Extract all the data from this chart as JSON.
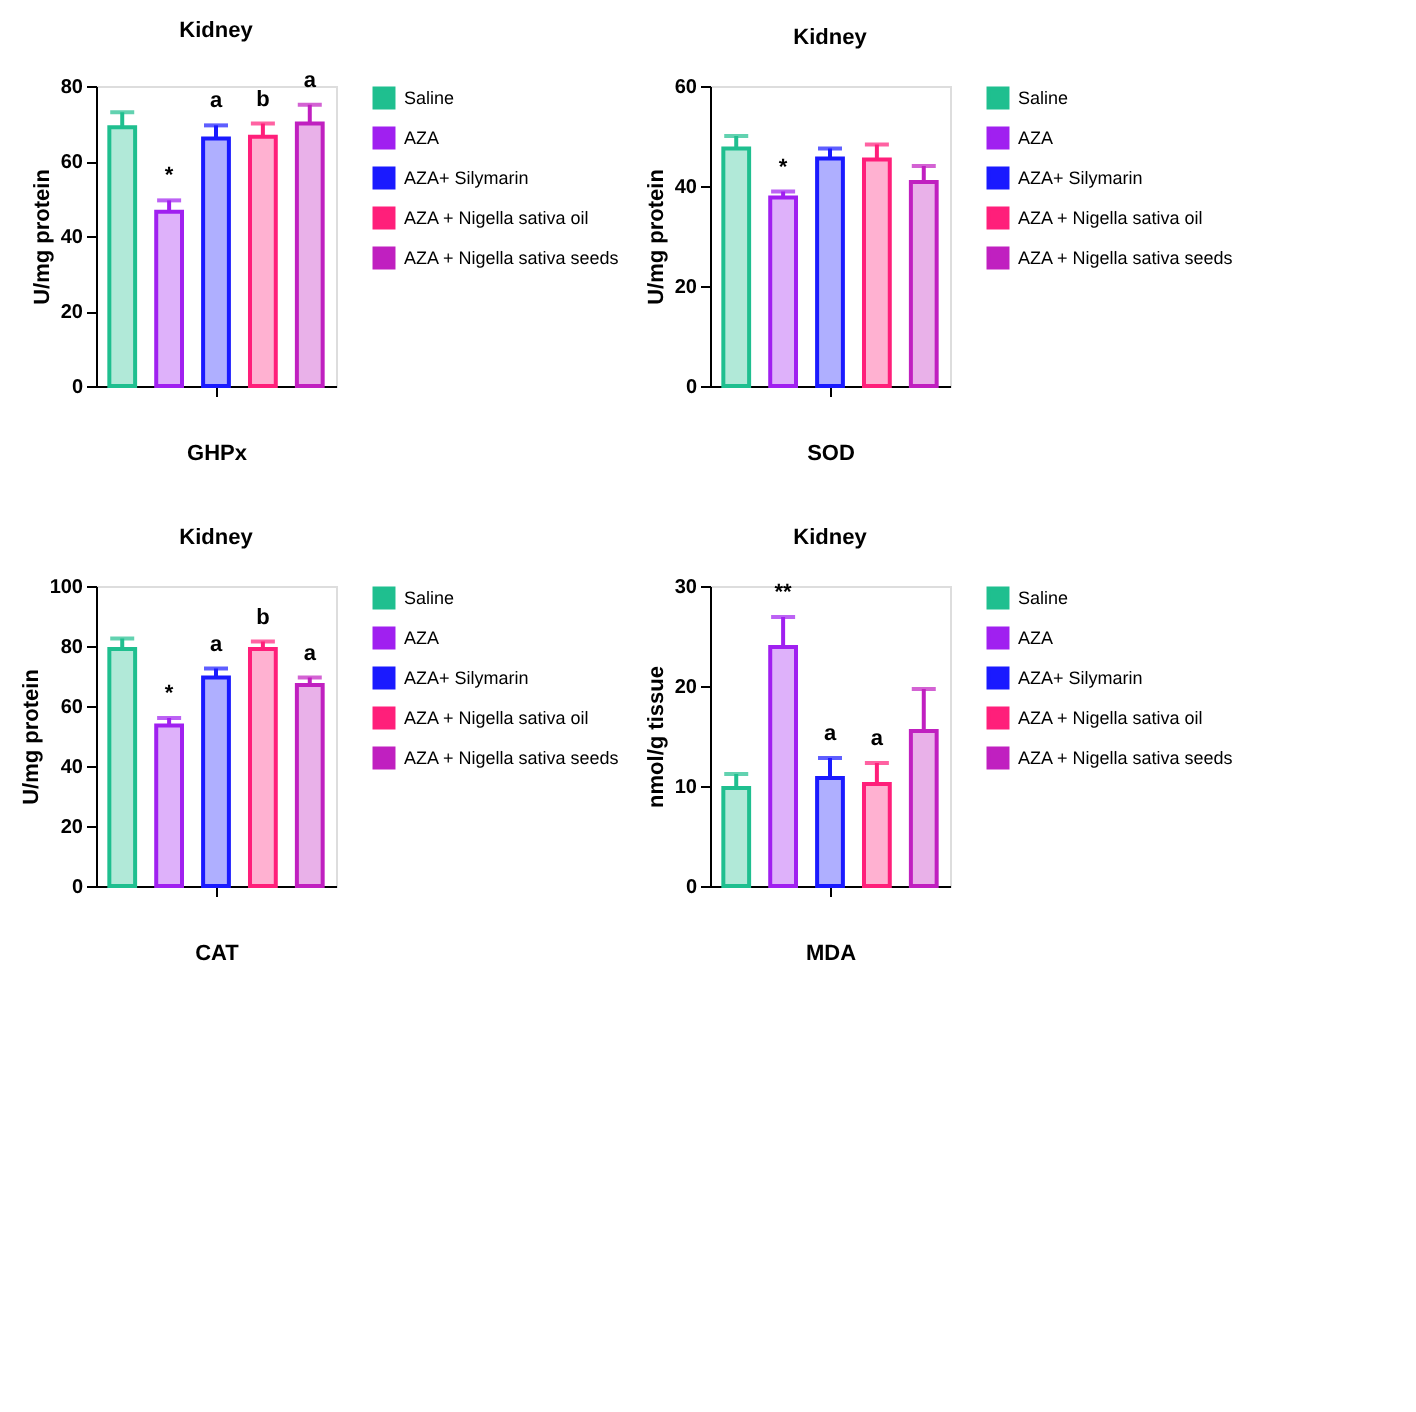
{
  "chart_data": [
    {
      "type": "bar",
      "title": "Kidney",
      "xlabel": "GHPx",
      "ylabel": "U/mg protein",
      "categories": [
        null
      ],
      "ylim": [
        0,
        80
      ],
      "yticks": [
        0,
        20,
        40,
        60,
        80
      ],
      "legend": "top right",
      "grid": false,
      "tick_labels": "y",
      "series": [
        {
          "name": "Saline",
          "color": "#1fbf8f",
          "values": [
            69
          ],
          "errors": [
            4
          ]
        },
        {
          "name": "AZA",
          "color": "#a020f0",
          "values": [
            46.5
          ],
          "errors": [
            3
          ],
          "value_labels": [
            "*"
          ]
        },
        {
          "name": "AZA+ Silymarin",
          "color": "#1a1aff",
          "values": [
            66
          ],
          "errors": [
            3.5
          ],
          "value_labels": [
            "a"
          ]
        },
        {
          "name": "AZA + Nigella sativa oil",
          "color": "#ff1f7a",
          "values": [
            66.5
          ],
          "errors": [
            3.5
          ],
          "value_labels": [
            "b"
          ]
        },
        {
          "name": "AZA + Nigella sativa seeds",
          "color": "#c020c0",
          "values": [
            70
          ],
          "errors": [
            5
          ],
          "value_labels": [
            "a"
          ]
        }
      ]
    },
    {
      "type": "bar",
      "title": "Kidney",
      "xlabel": "SOD",
      "ylabel": "U/mg protein",
      "categories": [
        null
      ],
      "ylim": [
        0,
        60
      ],
      "yticks": [
        0,
        20,
        40,
        60
      ],
      "legend": "top right",
      "grid": false,
      "tick_labels": "y",
      "series": [
        {
          "name": "Saline",
          "color": "#1fbf8f",
          "values": [
            47.5
          ],
          "errors": [
            2.5
          ]
        },
        {
          "name": "AZA",
          "color": "#a020f0",
          "values": [
            37.7
          ],
          "errors": [
            1.2
          ],
          "value_labels": [
            "*"
          ]
        },
        {
          "name": "AZA+ Silymarin",
          "color": "#1a1aff",
          "values": [
            45.5
          ],
          "errors": [
            2
          ]
        },
        {
          "name": "AZA + Nigella sativa oil",
          "color": "#ff1f7a",
          "values": [
            45.3
          ],
          "errors": [
            3
          ]
        },
        {
          "name": "AZA + Nigella sativa seeds",
          "color": "#c020c0",
          "values": [
            40.8
          ],
          "errors": [
            3.2
          ]
        }
      ]
    },
    {
      "type": "bar",
      "title": "Kidney",
      "xlabel": "CAT",
      "ylabel": "U/mg protein",
      "categories": [
        null
      ],
      "ylim": [
        0,
        100
      ],
      "yticks": [
        0,
        20,
        40,
        60,
        80,
        100
      ],
      "legend": "top right",
      "grid": false,
      "tick_labels": "y",
      "series": [
        {
          "name": "Saline",
          "color": "#1fbf8f",
          "values": [
            79
          ],
          "errors": [
            3.5
          ]
        },
        {
          "name": "AZA",
          "color": "#a020f0",
          "values": [
            53.5
          ],
          "errors": [
            2.5
          ],
          "value_labels": [
            "*"
          ]
        },
        {
          "name": "AZA+ Silymarin",
          "color": "#1a1aff",
          "values": [
            69.5
          ],
          "errors": [
            3
          ],
          "value_labels": [
            "a"
          ]
        },
        {
          "name": "AZA + Nigella sativa oil",
          "color": "#ff1f7a",
          "values": [
            79
          ],
          "errors": [
            2.5
          ],
          "value_labels": [
            "b"
          ]
        },
        {
          "name": "AZA + Nigella sativa seeds",
          "color": "#c020c0",
          "values": [
            67
          ],
          "errors": [
            2.5
          ],
          "value_labels": [
            "a"
          ]
        }
      ]
    },
    {
      "type": "bar",
      "title": "Kidney",
      "xlabel": "MDA",
      "ylabel": "nmol/g tissue",
      "categories": [
        null
      ],
      "ylim": [
        0,
        30
      ],
      "yticks": [
        0,
        10,
        20,
        30
      ],
      "legend": "top right",
      "grid": false,
      "tick_labels": "y",
      "series": [
        {
          "name": "Saline",
          "color": "#1fbf8f",
          "values": [
            9.8
          ],
          "errors": [
            1.4
          ]
        },
        {
          "name": "AZA",
          "color": "#a020f0",
          "values": [
            23.9
          ],
          "errors": [
            3
          ],
          "value_labels": [
            "**"
          ]
        },
        {
          "name": "AZA+ Silymarin",
          "color": "#1a1aff",
          "values": [
            10.8
          ],
          "errors": [
            2
          ],
          "value_labels": [
            "a"
          ]
        },
        {
          "name": "AZA + Nigella sativa oil",
          "color": "#ff1f7a",
          "values": [
            10.2
          ],
          "errors": [
            2.1
          ],
          "value_labels": [
            "a"
          ]
        },
        {
          "name": "AZA + Nigella sativa seeds",
          "color": "#c020c0",
          "values": [
            15.5
          ],
          "errors": [
            4.2
          ]
        }
      ]
    }
  ]
}
